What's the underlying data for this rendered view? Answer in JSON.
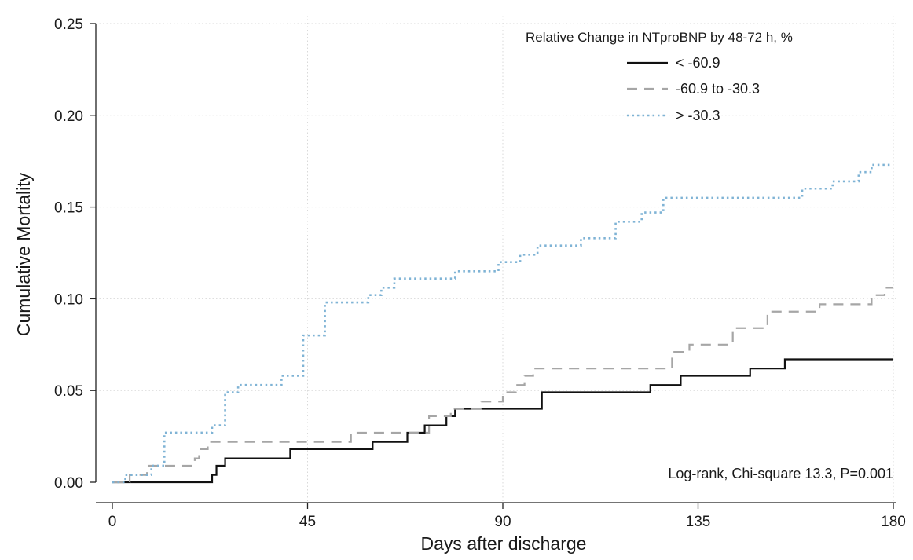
{
  "chart_data": {
    "type": "line",
    "xlabel": "Days after discharge",
    "ylabel": "Cumulative Mortality",
    "xlim": [
      0,
      180
    ],
    "ylim": [
      0,
      0.25
    ],
    "xticks": [
      "0",
      "45",
      "90",
      "135",
      "180"
    ],
    "yticks": [
      "0.00",
      "0.05",
      "0.10",
      "0.15",
      "0.20",
      "0.25"
    ],
    "grid": true,
    "legend": {
      "title": "Relative Change in NTproBNP by 48-72 h, %",
      "placement": "top-right"
    },
    "annotation": "Log-rank, Chi-square 13.3, P=0.001",
    "series": [
      {
        "name": "< -60.9",
        "style": "solid",
        "color": "#111111",
        "x": [
          0,
          23,
          24,
          26,
          37,
          41,
          53,
          60,
          66,
          68,
          72,
          76,
          77,
          79,
          82,
          99,
          100,
          124,
          130,
          131,
          147,
          155,
          180
        ],
        "y": [
          0,
          0.004,
          0.009,
          0.013,
          0.013,
          0.018,
          0.018,
          0.022,
          0.022,
          0.027,
          0.031,
          0.031,
          0.036,
          0.04,
          0.04,
          0.049,
          0.049,
          0.053,
          0.053,
          0.058,
          0.062,
          0.067,
          0.067
        ]
      },
      {
        "name": "-60.9 to -30.3",
        "style": "dashed",
        "color": "#a6a6a6",
        "x": [
          0,
          4,
          8,
          15,
          19,
          20,
          22,
          45,
          55,
          68,
          73,
          78,
          85,
          90,
          93,
          95,
          97,
          127,
          129,
          133,
          138,
          143,
          146,
          151,
          155,
          163,
          170,
          175,
          178,
          180
        ],
        "y": [
          0,
          0.004,
          0.009,
          0.009,
          0.013,
          0.018,
          0.022,
          0.022,
          0.027,
          0.027,
          0.036,
          0.04,
          0.044,
          0.049,
          0.053,
          0.058,
          0.062,
          0.062,
          0.071,
          0.075,
          0.075,
          0.084,
          0.084,
          0.093,
          0.093,
          0.097,
          0.097,
          0.102,
          0.106,
          0.106
        ]
      },
      {
        "name": "> -30.3",
        "style": "dotted",
        "color": "#7fb3d5",
        "x": [
          0,
          3,
          5,
          9,
          12,
          21,
          23,
          26,
          29,
          36,
          39,
          44,
          45,
          49,
          53,
          59,
          62,
          65,
          68,
          79,
          85,
          89,
          94,
          98,
          101,
          108,
          112,
          116,
          122,
          126,
          127,
          130,
          153,
          159,
          166,
          172,
          175,
          180
        ],
        "y": [
          0,
          0.004,
          0.004,
          0.009,
          0.027,
          0.027,
          0.031,
          0.049,
          0.053,
          0.053,
          0.058,
          0.08,
          0.08,
          0.098,
          0.098,
          0.102,
          0.106,
          0.111,
          0.111,
          0.115,
          0.115,
          0.12,
          0.124,
          0.129,
          0.129,
          0.133,
          0.133,
          0.142,
          0.147,
          0.147,
          0.155,
          0.155,
          0.155,
          0.16,
          0.164,
          0.169,
          0.173,
          0.173
        ]
      }
    ]
  }
}
